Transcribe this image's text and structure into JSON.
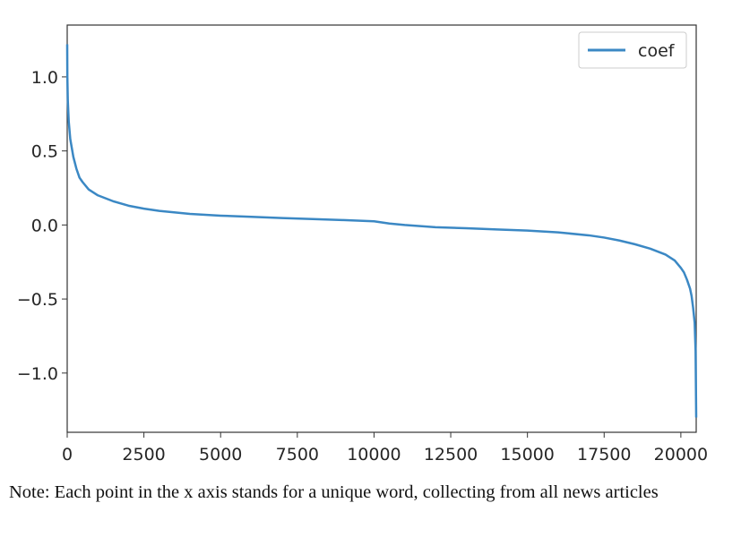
{
  "chart_data": {
    "type": "line",
    "series": [
      {
        "name": "coef",
        "color": "#3b88c4",
        "x": [
          0,
          5,
          20,
          50,
          100,
          200,
          300,
          400,
          500,
          700,
          1000,
          1500,
          2000,
          2500,
          3000,
          4000,
          5000,
          6000,
          7000,
          8000,
          9000,
          10000,
          10500,
          11000,
          12000,
          13000,
          14000,
          15000,
          16000,
          17000,
          17500,
          18000,
          18500,
          19000,
          19500,
          19800,
          20000,
          20100,
          20200,
          20300,
          20350,
          20400,
          20450,
          20480,
          20500
        ],
        "y": [
          1.22,
          1.0,
          0.84,
          0.7,
          0.58,
          0.46,
          0.38,
          0.32,
          0.29,
          0.24,
          0.2,
          0.16,
          0.13,
          0.11,
          0.095,
          0.075,
          0.063,
          0.055,
          0.047,
          0.04,
          0.033,
          0.025,
          0.01,
          0.0,
          -0.015,
          -0.022,
          -0.03,
          -0.038,
          -0.05,
          -0.07,
          -0.085,
          -0.105,
          -0.13,
          -0.16,
          -0.2,
          -0.24,
          -0.29,
          -0.32,
          -0.37,
          -0.43,
          -0.48,
          -0.56,
          -0.66,
          -0.85,
          -1.3
        ]
      }
    ],
    "xticks": [
      "0",
      "2500",
      "5000",
      "7500",
      "10000",
      "12500",
      "15000",
      "17500",
      "20000"
    ],
    "yticks": [
      "1.0",
      "0.5",
      "0.0",
      "−0.5",
      "−1.0"
    ],
    "xlim": [
      0,
      20500
    ],
    "ylim": [
      -1.4,
      1.35
    ],
    "legend_position": "top-right",
    "grid": false
  },
  "caption": "Note: Each point in the x axis stands for a unique word, collecting from all news articles"
}
